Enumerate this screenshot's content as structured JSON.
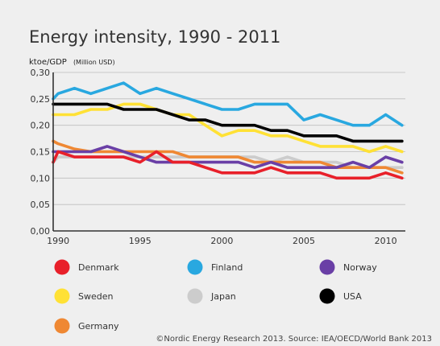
{
  "chart_data": {
    "type": "line",
    "title": "Energy intensity, 1990 - 2011",
    "ylabel": "ktoe/GDP",
    "ylabel_unit": "(Million USD)",
    "ylim": [
      0,
      0.3
    ],
    "xlim": [
      1989.7,
      2011.2
    ],
    "y_ticks": [
      0,
      0.05,
      0.1,
      0.15,
      0.2,
      0.25,
      0.3
    ],
    "y_tick_labels": [
      "0,00",
      "0,05",
      "0,10",
      "0,15",
      "0,20",
      "0,25",
      "0,30"
    ],
    "x_ticks": [
      1990,
      1995,
      2000,
      2005,
      2010
    ],
    "x_tick_labels": [
      "1990",
      "1995",
      "2000",
      "2005",
      "2010"
    ],
    "grid": "horizontal",
    "legend_position": "bottom",
    "x": [
      1989.7,
      1990,
      1991,
      1992,
      1993,
      1994,
      1995,
      1996,
      1997,
      1998,
      1999,
      2000,
      2001,
      2002,
      2003,
      2004,
      2005,
      2006,
      2007,
      2008,
      2009,
      2010,
      2011
    ],
    "series": [
      {
        "name": "Japan",
        "color": "#cccccc",
        "values": [
          0.13,
          0.14,
          0.14,
          0.14,
          0.14,
          0.14,
          0.14,
          0.14,
          0.14,
          0.14,
          0.14,
          0.14,
          0.14,
          0.14,
          0.13,
          0.14,
          0.13,
          0.13,
          0.13,
          0.12,
          0.12,
          0.12,
          0.12
        ]
      },
      {
        "name": "Germany",
        "color": "#ef8833",
        "values": [
          0.17,
          0.165,
          0.155,
          0.15,
          0.15,
          0.15,
          0.15,
          0.15,
          0.15,
          0.14,
          0.14,
          0.14,
          0.14,
          0.13,
          0.13,
          0.13,
          0.13,
          0.13,
          0.12,
          0.12,
          0.12,
          0.12,
          0.11
        ]
      },
      {
        "name": "Norway",
        "color": "#6a3fa6",
        "values": [
          0.15,
          0.15,
          0.15,
          0.15,
          0.16,
          0.15,
          0.14,
          0.13,
          0.13,
          0.13,
          0.13,
          0.13,
          0.13,
          0.12,
          0.13,
          0.12,
          0.12,
          0.12,
          0.12,
          0.13,
          0.12,
          0.14,
          0.13
        ]
      },
      {
        "name": "Denmark",
        "color": "#e8202a",
        "values": [
          0.13,
          0.15,
          0.14,
          0.14,
          0.14,
          0.14,
          0.13,
          0.15,
          0.13,
          0.13,
          0.12,
          0.11,
          0.11,
          0.11,
          0.12,
          0.11,
          0.11,
          0.11,
          0.1,
          0.1,
          0.1,
          0.11,
          0.1
        ]
      },
      {
        "name": "Sweden",
        "color": "#ffe135",
        "values": [
          0.22,
          0.22,
          0.22,
          0.23,
          0.23,
          0.24,
          0.24,
          0.23,
          0.22,
          0.22,
          0.2,
          0.18,
          0.19,
          0.19,
          0.18,
          0.18,
          0.17,
          0.16,
          0.16,
          0.16,
          0.15,
          0.16,
          0.15
        ]
      },
      {
        "name": "USA",
        "color": "#000000",
        "values": [
          0.24,
          0.24,
          0.24,
          0.24,
          0.24,
          0.23,
          0.23,
          0.23,
          0.22,
          0.21,
          0.21,
          0.2,
          0.2,
          0.2,
          0.19,
          0.19,
          0.18,
          0.18,
          0.18,
          0.17,
          0.17,
          0.17,
          0.17
        ]
      },
      {
        "name": "Finland",
        "color": "#29a8e0",
        "values": [
          0.25,
          0.26,
          0.27,
          0.26,
          0.27,
          0.28,
          0.26,
          0.27,
          0.26,
          0.25,
          0.24,
          0.23,
          0.23,
          0.24,
          0.24,
          0.24,
          0.21,
          0.22,
          0.21,
          0.2,
          0.2,
          0.22,
          0.2
        ]
      }
    ],
    "legend": [
      {
        "name": "Denmark",
        "color": "#e8202a"
      },
      {
        "name": "Finland",
        "color": "#29a8e0"
      },
      {
        "name": "Norway",
        "color": "#6a3fa6"
      },
      {
        "name": "Sweden",
        "color": "#ffe135"
      },
      {
        "name": "Japan",
        "color": "#cccccc"
      },
      {
        "name": "USA",
        "color": "#000000"
      },
      {
        "name": "Germany",
        "color": "#ef8833"
      }
    ],
    "source": "©Nordic Energy Research 2013. Source: IEA/OECD/World Bank 2013"
  }
}
